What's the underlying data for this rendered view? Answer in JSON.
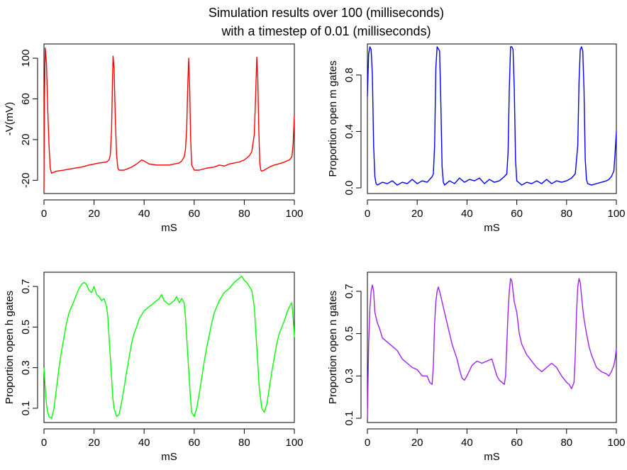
{
  "title_line1": "Simulation results over 100 (milliseconds)",
  "title_line2": "with a timestep of 0.01 (milliseconds)",
  "chart_data": [
    {
      "type": "line",
      "color": "#ff0000",
      "xlabel": "mS",
      "ylabel": "-V(mV)",
      "xlim": [
        0,
        100
      ],
      "ylim": [
        -33,
        114
      ],
      "xticks": [
        "0",
        "20",
        "40",
        "60",
        "80",
        "100"
      ],
      "yticks": [
        "-20",
        "20",
        "60",
        "100"
      ],
      "x": [
        0,
        0.2,
        0.5,
        1,
        1.5,
        2,
        2.5,
        3,
        4,
        5,
        8,
        10,
        15,
        18,
        22,
        25,
        26,
        26.5,
        27,
        27.3,
        27.6,
        28,
        28.5,
        29,
        29.5,
        30,
        32,
        35,
        37,
        39,
        40,
        42,
        45,
        48,
        50,
        52,
        54,
        55,
        56,
        56.5,
        57,
        57.4,
        57.8,
        58.2,
        58.6,
        59,
        60,
        62,
        65,
        68,
        70,
        72,
        74,
        76,
        78,
        80,
        82,
        83,
        84,
        84.5,
        85,
        85.4,
        85.8,
        86.2,
        86.6,
        87,
        88,
        90,
        92,
        95,
        98,
        99,
        99.5,
        100
      ],
      "y": [
        -30,
        60,
        110,
        95,
        50,
        15,
        -8,
        -13,
        -12,
        -11,
        -10,
        -9,
        -7,
        -5,
        -3,
        -2,
        0,
        5,
        30,
        70,
        102,
        90,
        40,
        5,
        -8,
        -10,
        -10,
        -7,
        -4,
        0,
        -1,
        -4,
        -5,
        -5,
        -5,
        -4,
        -3,
        -1,
        3,
        10,
        30,
        70,
        100,
        70,
        20,
        -5,
        -10,
        -10,
        -8,
        -7,
        -5,
        -6,
        -4,
        -3,
        -2,
        0,
        4,
        8,
        25,
        60,
        101,
        80,
        30,
        -3,
        -10,
        -11,
        -10,
        -7,
        -5,
        -3,
        0,
        3,
        15,
        44
      ]
    },
    {
      "type": "line",
      "color": "#0000ff",
      "xlabel": "mS",
      "ylabel": "Proportion open m gates",
      "xlim": [
        0,
        100
      ],
      "ylim": [
        -0.04,
        1.02
      ],
      "xticks": [
        "0",
        "20",
        "40",
        "60",
        "80",
        "100"
      ],
      "yticks": [
        "0.0",
        "0.4",
        "0.8"
      ],
      "x": [
        0,
        0.5,
        1,
        1.5,
        2,
        2.5,
        3,
        3.5,
        4,
        6,
        8,
        10,
        12,
        14,
        16,
        18,
        20,
        22,
        24,
        26,
        26.5,
        27,
        27.5,
        28,
        29,
        29.5,
        30,
        30.5,
        31,
        33,
        35,
        37,
        39,
        41,
        43,
        45,
        47,
        49,
        51,
        53,
        55,
        56,
        56.5,
        57,
        57.5,
        58,
        58.5,
        59,
        59.5,
        60,
        62,
        64,
        66,
        68,
        70,
        72,
        74,
        76,
        78,
        80,
        82,
        83.5,
        84.5,
        85,
        85.5,
        86,
        86.5,
        87,
        87.5,
        88,
        88.5,
        90,
        92,
        94,
        96,
        97,
        98,
        99,
        99.5,
        100
      ],
      "y": [
        0.65,
        0.95,
        1.0,
        0.98,
        0.8,
        0.3,
        0.08,
        0.03,
        0.02,
        0.04,
        0.03,
        0.05,
        0.02,
        0.04,
        0.03,
        0.06,
        0.03,
        0.05,
        0.04,
        0.08,
        0.1,
        0.3,
        0.85,
        1.0,
        0.97,
        0.6,
        0.15,
        0.04,
        0.02,
        0.05,
        0.03,
        0.07,
        0.04,
        0.06,
        0.05,
        0.07,
        0.03,
        0.06,
        0.04,
        0.05,
        0.08,
        0.1,
        0.25,
        0.7,
        1.0,
        1.0,
        0.98,
        0.7,
        0.2,
        0.05,
        0.02,
        0.04,
        0.03,
        0.05,
        0.03,
        0.06,
        0.03,
        0.05,
        0.04,
        0.05,
        0.07,
        0.1,
        0.3,
        0.75,
        0.98,
        1.0,
        0.97,
        0.7,
        0.2,
        0.06,
        0.03,
        0.02,
        0.03,
        0.04,
        0.05,
        0.06,
        0.08,
        0.12,
        0.25,
        0.4
      ]
    },
    {
      "type": "line",
      "color": "#00ff00",
      "xlabel": "mS",
      "ylabel": "Proportion open h gates",
      "xlim": [
        0,
        100
      ],
      "ylim": [
        0.03,
        0.77
      ],
      "xticks": [
        "0",
        "20",
        "40",
        "60",
        "80",
        "100"
      ],
      "yticks": [
        "0.1",
        "0.3",
        "0.5",
        "0.7"
      ],
      "x": [
        0,
        0.5,
        1,
        1.5,
        2,
        3,
        4,
        5,
        6,
        7,
        8,
        9,
        10,
        11,
        12,
        13,
        14,
        15,
        16,
        17,
        18,
        19,
        20,
        21,
        22,
        23,
        24,
        25,
        25.5,
        26,
        26.5,
        27,
        27.5,
        28,
        29,
        30,
        31,
        32,
        33,
        34,
        35,
        36,
        37,
        38,
        40,
        42,
        44,
        46,
        47,
        48,
        50,
        52,
        53,
        54,
        55,
        56,
        56.5,
        57,
        57.5,
        58,
        58.5,
        59,
        60,
        61,
        62,
        63,
        64,
        65,
        66,
        67,
        68,
        70,
        72,
        74,
        76,
        78,
        79,
        80,
        81,
        82,
        83,
        84,
        84.5,
        85,
        85.5,
        86,
        87,
        88,
        89,
        90,
        91,
        92,
        93,
        94,
        95,
        96,
        97,
        98,
        99,
        99.5,
        100
      ],
      "y": [
        0.3,
        0.2,
        0.12,
        0.08,
        0.06,
        0.05,
        0.1,
        0.2,
        0.3,
        0.38,
        0.45,
        0.52,
        0.57,
        0.6,
        0.63,
        0.66,
        0.69,
        0.71,
        0.72,
        0.71,
        0.68,
        0.67,
        0.7,
        0.66,
        0.65,
        0.63,
        0.64,
        0.6,
        0.55,
        0.45,
        0.35,
        0.25,
        0.15,
        0.1,
        0.06,
        0.07,
        0.13,
        0.2,
        0.28,
        0.35,
        0.42,
        0.47,
        0.5,
        0.54,
        0.58,
        0.6,
        0.62,
        0.64,
        0.66,
        0.63,
        0.61,
        0.63,
        0.65,
        0.62,
        0.64,
        0.62,
        0.55,
        0.45,
        0.35,
        0.25,
        0.15,
        0.08,
        0.06,
        0.1,
        0.17,
        0.25,
        0.33,
        0.4,
        0.46,
        0.52,
        0.57,
        0.63,
        0.67,
        0.69,
        0.72,
        0.74,
        0.75,
        0.73,
        0.72,
        0.7,
        0.68,
        0.6,
        0.5,
        0.4,
        0.3,
        0.2,
        0.1,
        0.08,
        0.12,
        0.2,
        0.28,
        0.35,
        0.42,
        0.47,
        0.5,
        0.53,
        0.57,
        0.6,
        0.62,
        0.55,
        0.45
      ]
    },
    {
      "type": "line",
      "color": "#a020f0",
      "xlabel": "mS",
      "ylabel": "Proportion open n gates",
      "xlim": [
        0,
        100
      ],
      "ylim": [
        0.08,
        0.79
      ],
      "xticks": [
        "0",
        "20",
        "40",
        "60",
        "80",
        "100"
      ],
      "yticks": [
        "0.1",
        "0.3",
        "0.5",
        "0.7"
      ],
      "x": [
        0,
        0.5,
        1,
        1.5,
        2,
        2.5,
        3,
        4,
        5,
        6,
        8,
        10,
        12,
        14,
        16,
        18,
        20,
        22,
        24,
        25,
        26,
        26.5,
        27,
        27.5,
        28,
        28.5,
        29,
        30,
        31,
        32,
        34,
        36,
        37,
        38,
        39,
        40,
        42,
        44,
        46,
        48,
        50,
        51,
        52,
        53,
        54,
        55,
        55.5,
        56,
        56.5,
        57,
        57.5,
        58,
        58.5,
        59,
        60,
        61,
        62,
        64,
        66,
        68,
        70,
        72,
        74,
        76,
        78,
        80,
        81,
        82,
        83,
        83.5,
        84,
        84.5,
        85,
        85.5,
        86,
        86.5,
        87,
        88,
        89,
        90,
        91,
        92,
        94,
        96,
        97,
        98,
        99,
        99.5,
        100
      ],
      "y": [
        0.1,
        0.45,
        0.62,
        0.7,
        0.73,
        0.7,
        0.6,
        0.55,
        0.52,
        0.48,
        0.46,
        0.44,
        0.42,
        0.38,
        0.36,
        0.34,
        0.33,
        0.3,
        0.3,
        0.27,
        0.26,
        0.35,
        0.55,
        0.65,
        0.7,
        0.72,
        0.7,
        0.65,
        0.6,
        0.55,
        0.45,
        0.38,
        0.33,
        0.29,
        0.28,
        0.3,
        0.35,
        0.37,
        0.36,
        0.37,
        0.38,
        0.34,
        0.3,
        0.28,
        0.27,
        0.26,
        0.3,
        0.45,
        0.6,
        0.7,
        0.76,
        0.75,
        0.7,
        0.65,
        0.6,
        0.5,
        0.45,
        0.4,
        0.37,
        0.34,
        0.32,
        0.34,
        0.36,
        0.34,
        0.3,
        0.27,
        0.26,
        0.24,
        0.27,
        0.4,
        0.6,
        0.72,
        0.76,
        0.74,
        0.68,
        0.62,
        0.57,
        0.5,
        0.44,
        0.4,
        0.37,
        0.34,
        0.32,
        0.31,
        0.3,
        0.32,
        0.35,
        0.38,
        0.43
      ]
    }
  ]
}
